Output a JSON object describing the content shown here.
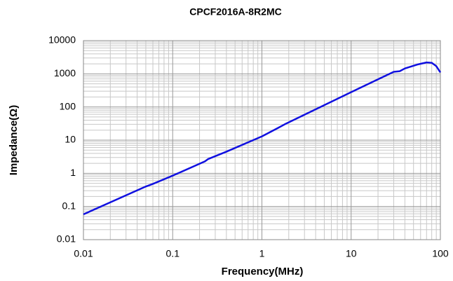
{
  "chart_data": {
    "type": "line",
    "title": "CPCF2016A-8R2MC",
    "x_label": "Frequency(MHz)",
    "y_label": "Impedance(Ω)",
    "x": [
      0.01,
      0.05,
      0.06,
      0.1,
      0.23,
      0.25,
      0.4,
      1,
      1.5,
      1.8,
      10,
      30,
      35,
      40,
      55,
      70,
      80,
      90,
      100
    ],
    "values": [
      0.058,
      0.4,
      0.48,
      0.85,
      2.3,
      2.7,
      4.5,
      13,
      23,
      30,
      280,
      1150,
      1200,
      1450,
      1900,
      2200,
      2150,
      1700,
      1100
    ],
    "color": "#1010e0",
    "xlim": [
      0.01,
      100
    ],
    "ylim": [
      0.01,
      10000
    ],
    "xticks": [
      0.01,
      0.1,
      1,
      10,
      100
    ],
    "yticks": [
      0.01,
      0.1,
      1,
      10,
      100,
      1000,
      10000
    ],
    "xlog": true,
    "ylog": true,
    "grid": true
  }
}
